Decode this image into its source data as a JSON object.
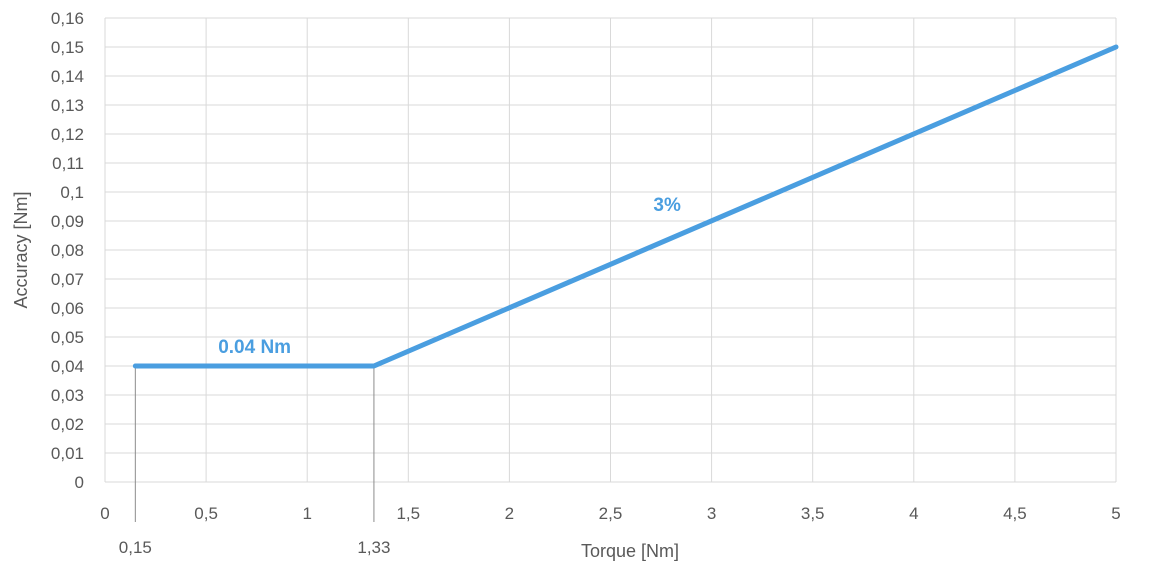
{
  "colors": {
    "series": "#4a9ee0",
    "grid": "#d9d9d9",
    "marker": "#8c8c8c",
    "text": "#595959"
  },
  "chart_data": {
    "type": "line",
    "title": "",
    "xlabel": "Torque [Nm]",
    "ylabel": "Accuracy [Nm]",
    "xlim": [
      0,
      5
    ],
    "ylim": [
      0,
      0.16
    ],
    "grid": true,
    "legend": "none",
    "x_ticks": [
      0,
      0.5,
      1,
      1.5,
      2,
      2.5,
      3,
      3.5,
      4,
      4.5,
      5
    ],
    "x_tick_labels": [
      "0",
      "0,5",
      "1",
      "1,5",
      "2",
      "2,5",
      "3",
      "3,5",
      "4",
      "4,5",
      "5"
    ],
    "y_ticks": [
      0,
      0.01,
      0.02,
      0.03,
      0.04,
      0.05,
      0.06,
      0.07,
      0.08,
      0.09,
      0.1,
      0.11,
      0.12,
      0.13,
      0.14,
      0.15,
      0.16
    ],
    "y_tick_labels": [
      "0",
      "0,01",
      "0,02",
      "0,03",
      "0,04",
      "0,05",
      "0,06",
      "0,07",
      "0,08",
      "0,09",
      "0,1",
      "0,11",
      "0,12",
      "0,13",
      "0,14",
      "0,15",
      "0,16"
    ],
    "series": [
      {
        "x": [
          0.15,
          1.33,
          5
        ],
        "y": [
          0.04,
          0.04,
          0.15
        ]
      }
    ],
    "reference_markers": [
      {
        "x": 0.15,
        "label": "0,15"
      },
      {
        "x": 1.33,
        "label": "1,33"
      }
    ],
    "annotations": [
      {
        "text": "0.04 Nm",
        "x": 0.74,
        "y": 0.0445
      },
      {
        "text": "3%",
        "x": 2.78,
        "y": 0.0935
      }
    ]
  }
}
